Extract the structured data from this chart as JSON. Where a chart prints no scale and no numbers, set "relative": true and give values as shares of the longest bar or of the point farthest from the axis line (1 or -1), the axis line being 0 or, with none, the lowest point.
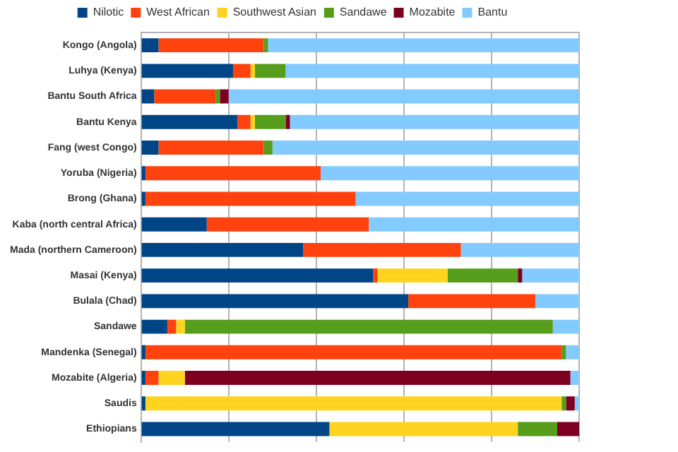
{
  "chart_data": {
    "type": "bar",
    "orientation": "horizontal",
    "stacked": true,
    "relative": true,
    "grid": "x",
    "legend": "top",
    "categories": [
      "Kongo (Angola)",
      "Luhya (Kenya)",
      "Bantu South Africa",
      "Bantu Kenya",
      "Fang (west Congo)",
      "Yoruba (Nigeria)",
      "Brong (Ghana)",
      "Kaba (north central Africa)",
      "Mada (northern Cameroon)",
      "Masai (Kenya)",
      "Bulala (Chad)",
      "Sandawe",
      "Mandenka (Senegal)",
      "Mozabite (Algeria)",
      "Saudis",
      "Ethiopians"
    ],
    "series": [
      {
        "name": "Nilotic",
        "color": "#004586",
        "values": [
          0.04,
          0.21,
          0.03,
          0.22,
          0.04,
          0.01,
          0.01,
          0.15,
          0.37,
          0.53,
          0.61,
          0.06,
          0.01,
          0.01,
          0.01,
          0.43
        ]
      },
      {
        "name": "West African",
        "color": "#ff420e",
        "values": [
          0.24,
          0.04,
          0.14,
          0.03,
          0.24,
          0.4,
          0.48,
          0.37,
          0.36,
          0.01,
          0.29,
          0.02,
          0.95,
          0.03,
          0,
          0
        ]
      },
      {
        "name": "Southwest Asian",
        "color": "#ffd320",
        "values": [
          0,
          0.01,
          0,
          0.01,
          0,
          0,
          0,
          0,
          0,
          0.16,
          0,
          0.02,
          0,
          0.06,
          0.95,
          0.43
        ]
      },
      {
        "name": "Sandawe",
        "color": "#579d1c",
        "values": [
          0.01,
          0.07,
          0.01,
          0.07,
          0.02,
          0,
          0,
          0,
          0,
          0.16,
          0,
          0.84,
          0.01,
          0,
          0.01,
          0.09
        ]
      },
      {
        "name": "Mozabite",
        "color": "#7e0021",
        "values": [
          0,
          0,
          0.02,
          0.01,
          0,
          0,
          0,
          0,
          0,
          0.01,
          0,
          0,
          0,
          0.88,
          0.02,
          0.05
        ]
      },
      {
        "name": "Bantu",
        "color": "#83caff",
        "values": [
          0.71,
          0.67,
          0.8,
          0.66,
          0.7,
          0.59,
          0.51,
          0.48,
          0.27,
          0.13,
          0.1,
          0.06,
          0.03,
          0.02,
          0.01,
          0
        ]
      }
    ]
  }
}
